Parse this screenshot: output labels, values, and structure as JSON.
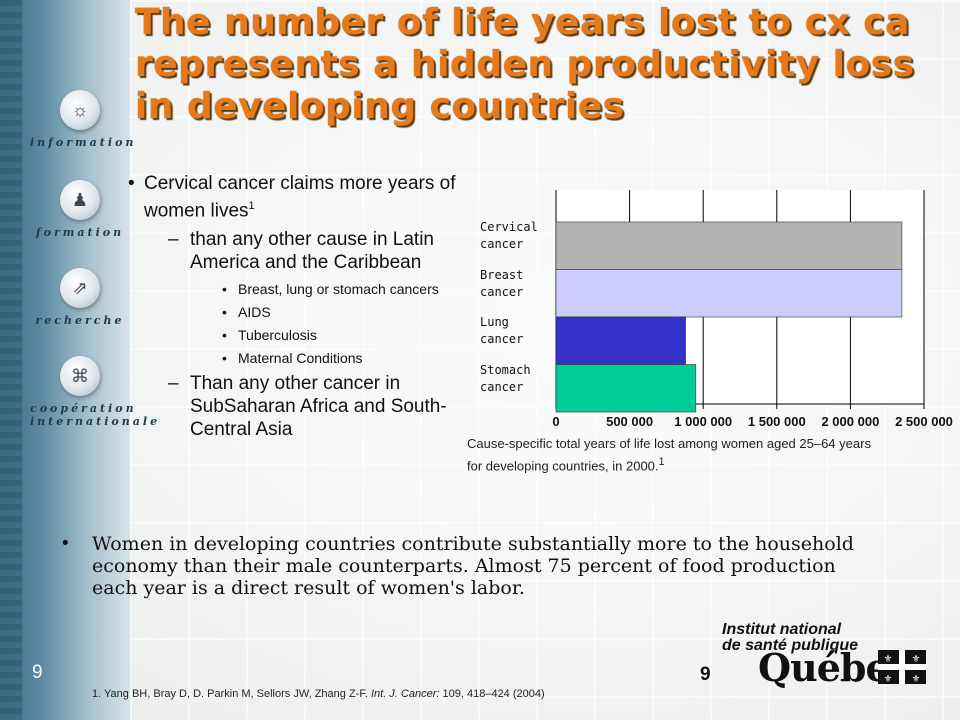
{
  "title": "The number of life years lost to cx ca represents a hidden productivity loss in developing countries",
  "sidebar": {
    "items": [
      {
        "label": "information"
      },
      {
        "label": "formation"
      },
      {
        "label": "recherche"
      },
      {
        "label": "coopération internationale"
      }
    ]
  },
  "bullets": {
    "main": "Cervical cancer claims more years of women lives",
    "main_sup": "1",
    "sub1": "than any other cause in Latin America and the Caribbean",
    "subsub": [
      "Breast, lung or stomach cancers",
      "AIDS",
      "Tuberculosis",
      "Maternal Conditions"
    ],
    "sub2": "Than  any other cancer in SubSaharan Africa and South-Central Asia"
  },
  "chart_data": {
    "type": "bar",
    "orientation": "horizontal",
    "categories": [
      "Cervical cancer",
      "Breast cancer",
      "Lung cancer",
      "Stomach cancer"
    ],
    "category_lines": [
      [
        "Cervical",
        "cancer"
      ],
      [
        "Breast",
        "cancer"
      ],
      [
        "Lung",
        "cancer"
      ],
      [
        "Stomach",
        "cancer"
      ]
    ],
    "values": [
      2350000,
      2350000,
      880000,
      950000
    ],
    "colors": [
      "#b4b4b4",
      "#ccccff",
      "#3333cc",
      "#00cc99"
    ],
    "xlim": [
      0,
      2500000
    ],
    "ticks": [
      "0",
      "500 000",
      "1 000 000",
      "1 500 000",
      "2 000 000",
      "2 500 000"
    ],
    "grid": true,
    "caption": "Cause-specific total years of life lost among women aged 25–64 years for developing countries, in 2000.",
    "caption_sup": "1"
  },
  "paragraph": "Women in developing countries contribute substantially more to the household economy than their male counterparts. Almost 75 percent of food production each year is a direct result of women's labor.",
  "page_number": "9",
  "footnote": {
    "authors": "1. Yang BH, Bray D, D. Parkin M, Sellors JW, Zhang Z-F.",
    "journal": "Int. J. Cancer:",
    "details": "109, 418–424 (2004)"
  },
  "logo": {
    "line1": "Institut national",
    "line2": "de santé publique",
    "name": "Québec"
  },
  "colors": {
    "title": "#e67a1a",
    "sidebar": "#4a7890"
  }
}
